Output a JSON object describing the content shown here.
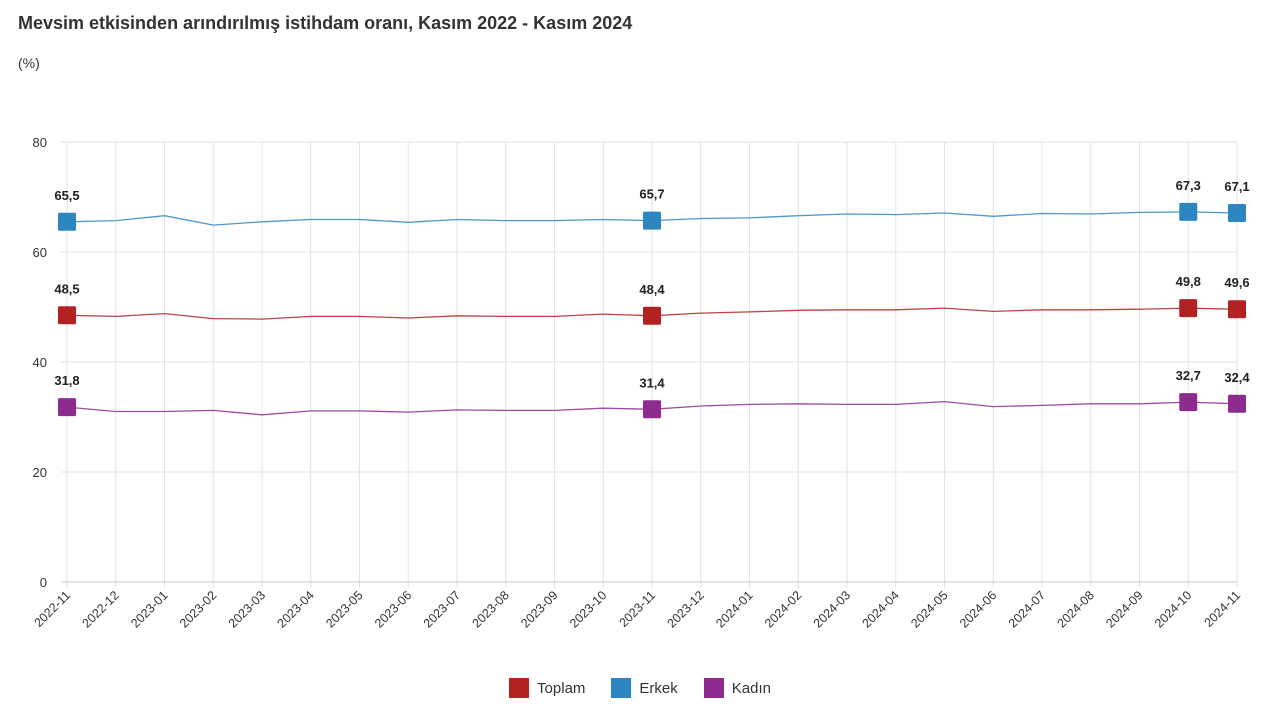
{
  "chart_data": {
    "type": "line",
    "title": "Mevsim etkisinden arındırılmış istihdam oranı, Kasım 2022 - Kasım 2024",
    "unit_label": "(%)",
    "ylim": [
      0,
      80
    ],
    "yticks": [
      0,
      20,
      40,
      60,
      80
    ],
    "grid": true,
    "legend_position": "bottom",
    "categories": [
      "2022-11",
      "2022-12",
      "2023-01",
      "2023-02",
      "2023-03",
      "2023-04",
      "2023-05",
      "2023-06",
      "2023-07",
      "2023-08",
      "2023-09",
      "2023-10",
      "2023-11",
      "2023-12",
      "2024-01",
      "2024-02",
      "2024-03",
      "2024-04",
      "2024-05",
      "2024-06",
      "2024-07",
      "2024-08",
      "2024-09",
      "2024-10",
      "2024-11"
    ],
    "series": [
      {
        "name": "Toplam",
        "color": "#b22222",
        "values": [
          48.5,
          48.3,
          48.8,
          47.9,
          47.8,
          48.3,
          48.3,
          48.0,
          48.4,
          48.3,
          48.3,
          48.7,
          48.4,
          48.9,
          49.1,
          49.4,
          49.5,
          49.5,
          49.8,
          49.2,
          49.5,
          49.5,
          49.6,
          49.8,
          49.6
        ],
        "labeled_points": [
          {
            "index": 0,
            "text": "48,5"
          },
          {
            "index": 12,
            "text": "48,4"
          },
          {
            "index": 23,
            "text": "49,8"
          },
          {
            "index": 24,
            "text": "49,6"
          }
        ]
      },
      {
        "name": "Erkek",
        "color": "#2e86c1",
        "values": [
          65.5,
          65.7,
          66.6,
          64.9,
          65.5,
          65.9,
          65.9,
          65.4,
          65.9,
          65.7,
          65.7,
          65.9,
          65.7,
          66.1,
          66.2,
          66.6,
          66.9,
          66.8,
          67.1,
          66.5,
          67.0,
          66.9,
          67.2,
          67.3,
          67.1
        ],
        "labeled_points": [
          {
            "index": 0,
            "text": "65,5"
          },
          {
            "index": 12,
            "text": "65,7"
          },
          {
            "index": 23,
            "text": "67,3"
          },
          {
            "index": 24,
            "text": "67,1"
          }
        ]
      },
      {
        "name": "Kadın",
        "color": "#8e2b8e",
        "values": [
          31.8,
          31.0,
          31.0,
          31.2,
          30.4,
          31.1,
          31.1,
          30.9,
          31.3,
          31.2,
          31.2,
          31.6,
          31.4,
          32.0,
          32.3,
          32.4,
          32.3,
          32.3,
          32.8,
          31.9,
          32.1,
          32.4,
          32.4,
          32.7,
          32.4
        ],
        "labeled_points": [
          {
            "index": 0,
            "text": "31,8"
          },
          {
            "index": 12,
            "text": "31,4"
          },
          {
            "index": 23,
            "text": "32,7"
          },
          {
            "index": 24,
            "text": "32,4"
          }
        ]
      }
    ]
  }
}
